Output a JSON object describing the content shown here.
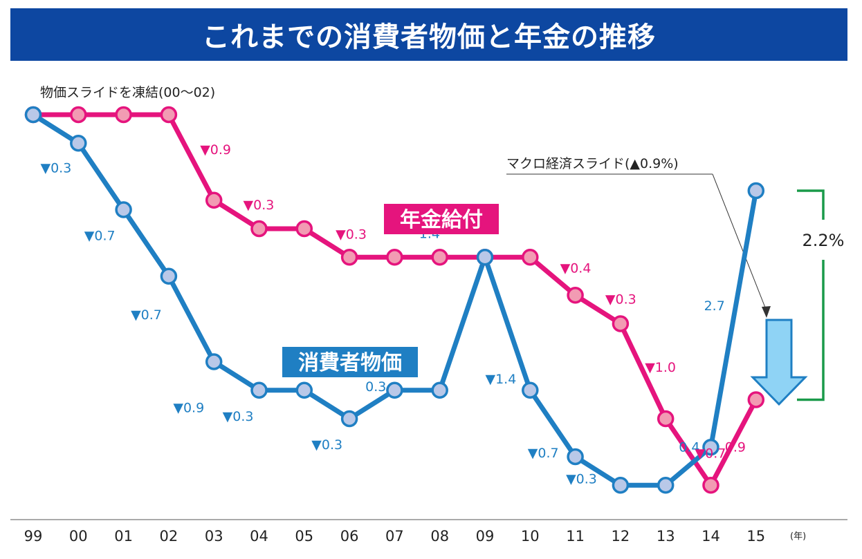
{
  "title": "これまでの消費者物価と年金の推移",
  "colors": {
    "title_bg": "#0d47a1",
    "cpi_line": "#1f7fc3",
    "cpi_marker": "#b9c8e8",
    "pension_line": "#e5147d",
    "pension_marker": "#f29bb3",
    "bracket": "#1a9a4a",
    "arrow_fill": "#8fd3f5",
    "arrow_stroke": "#1f7fc3"
  },
  "chart_data": {
    "type": "line",
    "title": "これまでの消費者物価と年金の推移",
    "categories": [
      "99",
      "00",
      "01",
      "02",
      "03",
      "04",
      "05",
      "06",
      "07",
      "08",
      "09",
      "10",
      "11",
      "12",
      "13",
      "14",
      "15"
    ],
    "x_unit": "(年)",
    "series": [
      {
        "name": "消費者物価",
        "color": "#1f7fc3",
        "values": [
          0,
          -0.3,
          -1.0,
          -1.7,
          -2.6,
          -2.9,
          -2.9,
          -3.2,
          -2.9,
          -2.9,
          -1.5,
          -2.9,
          -3.6,
          -3.9,
          -3.9,
          -3.5,
          -0.8
        ],
        "labels": [
          "",
          "▼0.3",
          "▼0.7",
          "▼0.7",
          "▼0.9",
          "▼0.3",
          "",
          "▼0.3",
          "0.3",
          "",
          "1.4",
          "▼1.4",
          "▼0.7",
          "▼0.3",
          "",
          "0.4",
          "2.7"
        ]
      },
      {
        "name": "年金給付",
        "color": "#e5147d",
        "values": [
          0,
          0,
          0,
          0,
          -0.9,
          -1.2,
          -1.2,
          -1.5,
          -1.5,
          -1.5,
          -1.5,
          -1.5,
          -1.9,
          -2.2,
          -3.2,
          -3.9,
          -3.0
        ],
        "labels": [
          "",
          "",
          "",
          "",
          "▼0.9",
          "▼0.3",
          "",
          "▼0.3",
          "",
          "",
          "",
          "",
          "▼0.4",
          "▼0.3",
          "▼1.0",
          "▼0.7",
          "0.9"
        ]
      }
    ],
    "annotations": {
      "freeze_note": "物価スライドを凍結(00〜02)",
      "macro_note": "マクロ経済スライド(▲0.9%)",
      "gap_label": "2.2%"
    },
    "grid": false,
    "legend": "inline labels"
  }
}
